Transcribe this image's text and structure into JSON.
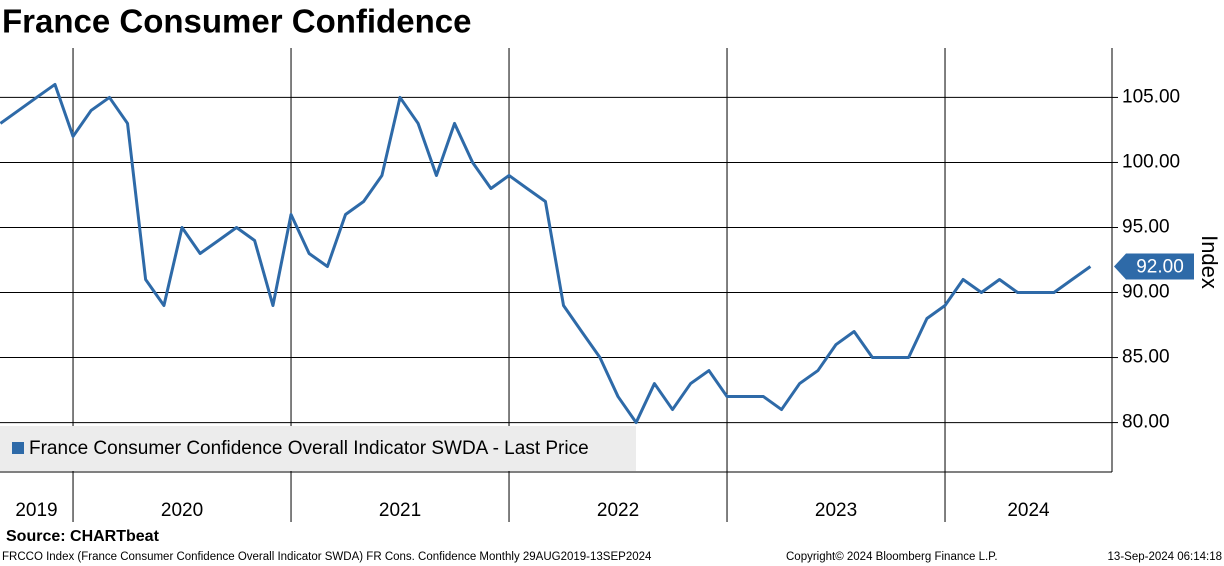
{
  "chart_data": {
    "type": "line",
    "title": "France Consumer Confidence",
    "y_label": "Index",
    "source": "Source: CHARTbeat",
    "footer_left": "FRCCO Index (France Consumer Confidence Overall Indicator SWDA) FR Cons. Confidence  Monthly 29AUG2019-13SEP2024",
    "footer_center": "Copyright© 2024 Bloomberg Finance L.P.",
    "footer_right": "13-Sep-2024 06:14:18",
    "x": [
      2019.667,
      2019.75,
      2019.833,
      2019.917,
      2020,
      2020.083,
      2020.167,
      2020.25,
      2020.333,
      2020.417,
      2020.5,
      2020.583,
      2020.667,
      2020.75,
      2020.833,
      2020.917,
      2021,
      2021.083,
      2021.167,
      2021.25,
      2021.333,
      2021.417,
      2021.5,
      2021.583,
      2021.667,
      2021.75,
      2021.833,
      2021.917,
      2022,
      2022.083,
      2022.167,
      2022.25,
      2022.333,
      2022.417,
      2022.5,
      2022.583,
      2022.667,
      2022.75,
      2022.833,
      2022.917,
      2023,
      2023.083,
      2023.167,
      2023.25,
      2023.333,
      2023.417,
      2023.5,
      2023.583,
      2023.667,
      2023.75,
      2023.833,
      2023.917,
      2024,
      2024.083,
      2024.167,
      2024.25,
      2024.333,
      2024.417,
      2024.5,
      2024.583,
      2024.667
    ],
    "series": [
      {
        "name": "France Consumer Confidence Overall Indicator SWDA - Last Price",
        "color": "#2e6aa8",
        "values": [
          103,
          104,
          105,
          106,
          102,
          104,
          105,
          103,
          91,
          89,
          95,
          93,
          94,
          95,
          94,
          89,
          96,
          93,
          92,
          96,
          97,
          99,
          105,
          103,
          99,
          103,
          100,
          98,
          99,
          98,
          97,
          89,
          87,
          85,
          82,
          80,
          83,
          81,
          83,
          84,
          82,
          82,
          82,
          81,
          83,
          84,
          86,
          87,
          85,
          85,
          85,
          88,
          89,
          91,
          90,
          91,
          90,
          90,
          90,
          91,
          92
        ]
      }
    ],
    "last_price": {
      "value": 92,
      "label": "92.00"
    },
    "xlim": [
      2019.665,
      2024.766
    ],
    "xticks": [
      2019,
      2020,
      2021,
      2022,
      2023,
      2024
    ],
    "ylim": [
      76.2,
      108.8
    ],
    "yticks": [
      {
        "value": 80,
        "label": "80.00"
      },
      {
        "value": 85,
        "label": "85.00"
      },
      {
        "value": 90,
        "label": "90.00"
      },
      {
        "value": 95,
        "label": "95.00"
      },
      {
        "value": 100,
        "label": "100.00"
      },
      {
        "value": 105,
        "label": "105.00"
      }
    ],
    "grid": true
  }
}
